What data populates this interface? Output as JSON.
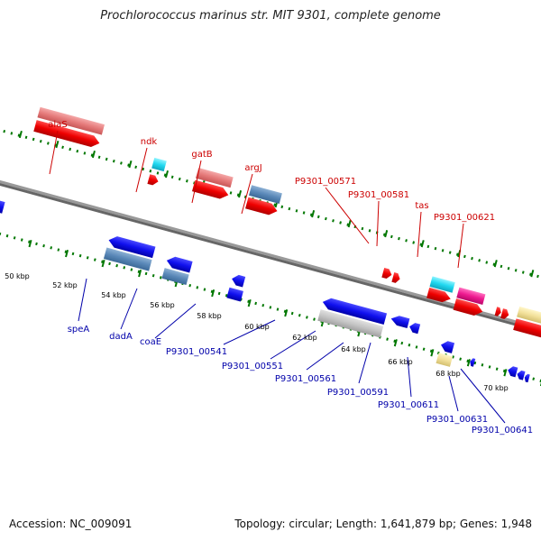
{
  "title": "Prochlorococcus marinus str. MIT 9301, complete genome",
  "footer": {
    "accession": "Accession: NC_009091",
    "topology": "Topology: circular; Length: 1,641,879 bp; Genes: 1,948"
  },
  "colors": {
    "forward_label": "#cc0000",
    "reverse_label": "#0000aa",
    "tick": "#007700",
    "backbone": "#777777"
  },
  "axis": {
    "ticks_kbp": [
      50,
      52,
      54,
      56,
      58,
      60,
      62,
      64,
      66,
      68,
      70
    ],
    "tick_suffix": " kbp"
  },
  "forward_gene_labels": [
    "alaS",
    "ndk",
    "gatB",
    "argJ",
    "P9301_00571",
    "P9301_00581",
    "tas",
    "P9301_00621"
  ],
  "reverse_gene_labels": [
    "speA",
    "dadA",
    "coaE",
    "P9301_00541",
    "P9301_00551",
    "P9301_00561",
    "P9301_00591",
    "P9301_00611",
    "P9301_00631",
    "P9301_00641"
  ]
}
